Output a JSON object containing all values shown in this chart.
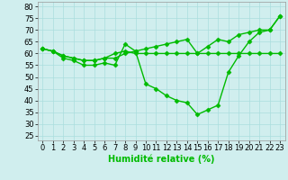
{
  "title": "",
  "xlabel": "Humidité relative (%)",
  "ylabel": "",
  "bg_color": "#d0eeee",
  "grid_color": "#aadddd",
  "line_color": "#00bb00",
  "marker": "D",
  "markersize": 2.5,
  "linewidth": 1.0,
  "xlim": [
    -0.5,
    23.5
  ],
  "ylim": [
    23,
    82
  ],
  "xticks": [
    0,
    1,
    2,
    3,
    4,
    5,
    6,
    7,
    8,
    9,
    10,
    11,
    12,
    13,
    14,
    15,
    16,
    17,
    18,
    19,
    20,
    21,
    22,
    23
  ],
  "yticks": [
    25,
    30,
    35,
    40,
    45,
    50,
    55,
    60,
    65,
    70,
    75,
    80
  ],
  "line1_x": [
    0,
    1,
    2,
    3,
    4,
    5,
    6,
    7,
    8,
    9,
    10,
    11,
    12,
    13,
    14,
    15,
    16,
    17,
    18,
    19,
    20,
    21,
    22,
    23
  ],
  "line1_y": [
    62,
    61,
    58,
    57,
    55,
    55,
    56,
    55,
    64,
    61,
    47,
    45,
    42,
    40,
    39,
    34,
    36,
    38,
    52,
    59,
    65,
    69,
    70,
    76
  ],
  "line2_x": [
    0,
    1,
    2,
    3,
    4,
    5,
    6,
    7,
    8,
    9,
    10,
    11,
    12,
    13,
    14,
    15,
    16,
    17,
    18,
    19,
    20,
    21,
    22,
    23
  ],
  "line2_y": [
    62,
    61,
    59,
    58,
    57,
    57,
    58,
    60,
    61,
    60,
    60,
    60,
    60,
    60,
    60,
    60,
    60,
    60,
    60,
    60,
    60,
    60,
    60,
    60
  ],
  "line3_x": [
    0,
    1,
    2,
    3,
    4,
    5,
    6,
    7,
    8,
    9,
    10,
    11,
    12,
    13,
    14,
    15,
    16,
    17,
    18,
    19,
    20,
    21,
    22,
    23
  ],
  "line3_y": [
    62,
    61,
    59,
    58,
    57,
    57,
    58,
    58,
    60,
    61,
    62,
    63,
    64,
    65,
    66,
    60,
    63,
    66,
    65,
    68,
    69,
    70,
    70,
    76
  ],
  "tick_fontsize": 6,
  "label_fontsize": 7
}
